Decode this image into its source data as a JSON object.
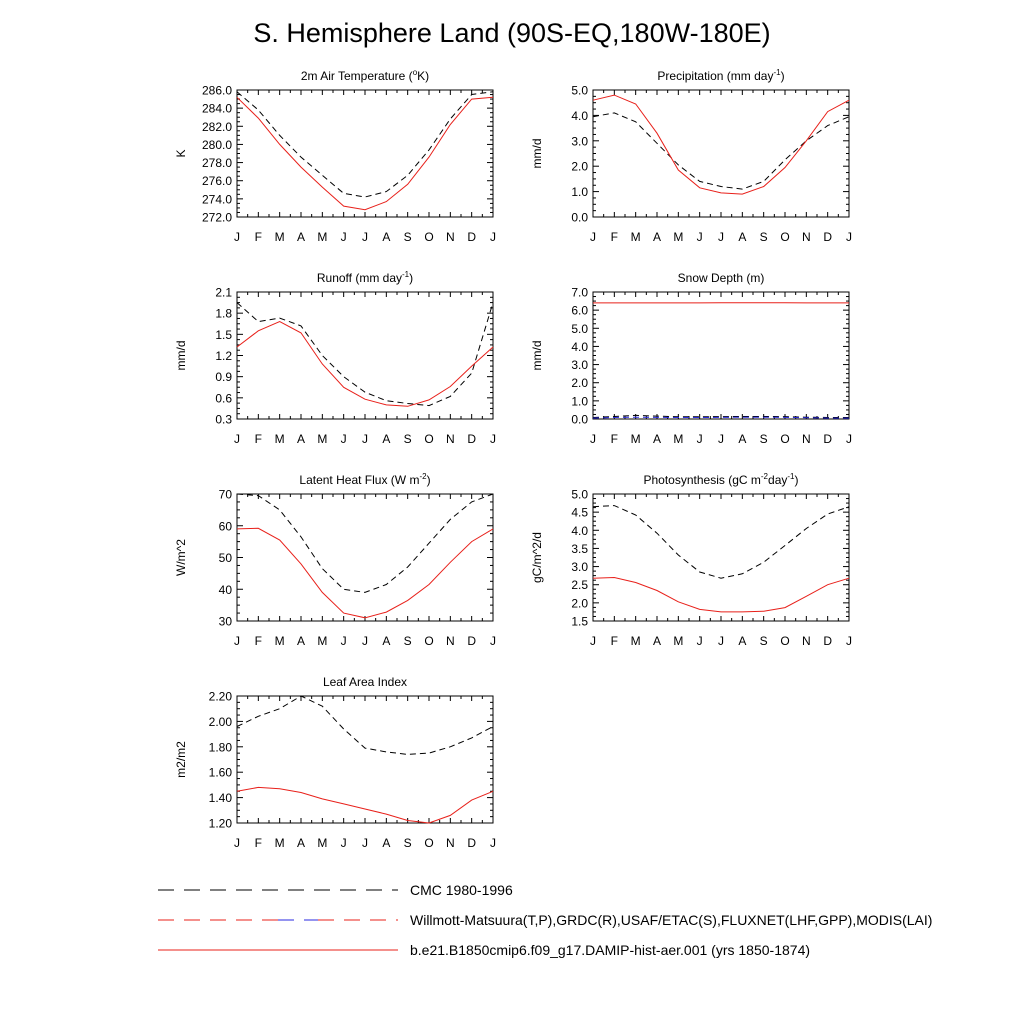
{
  "page": {
    "title": "S. Hemisphere Land (90S-EQ,180W-180E)"
  },
  "months": [
    "J",
    "F",
    "M",
    "A",
    "M",
    "J",
    "J",
    "A",
    "S",
    "O",
    "N",
    "D",
    "J"
  ],
  "legend": [
    {
      "label": "CMC 1980-1996",
      "style": "dash-black"
    },
    {
      "label": "Willmott-Matsuura(T,P),GRDC(R),USAF/ETAC(S),FLUXNET(LHF,GPP),MODIS(LAI)",
      "style": "dash-red-blue"
    },
    {
      "label": "b.e21.B1850cmip6.f09_g17.DAMIP-hist-aer.001 (yrs 1850-1874)",
      "style": "solid-red"
    }
  ],
  "chart_data": [
    {
      "type": "line",
      "title": "2m Air Temperature (°K)",
      "title_parts": [
        "2m Air Temperature (",
        "o",
        "K)"
      ],
      "ylabel": "K",
      "ylim": [
        272,
        286
      ],
      "yticks": [
        "286.0",
        "284.0",
        "282.0",
        "280.0",
        "278.0",
        "276.0",
        "274.0",
        "272.0"
      ],
      "ytick_values": [
        286,
        284,
        282,
        280,
        278,
        276,
        274,
        272
      ],
      "x": [
        "J",
        "F",
        "M",
        "A",
        "M",
        "J",
        "J",
        "A",
        "S",
        "O",
        "N",
        "D",
        "J"
      ],
      "series": [
        {
          "style": "dash-black",
          "values": [
            285.8,
            283.8,
            281.0,
            278.6,
            276.6,
            274.6,
            274.2,
            274.8,
            276.6,
            279.4,
            282.8,
            285.5,
            285.8
          ]
        },
        {
          "style": "solid-red",
          "values": [
            285.2,
            282.9,
            280.0,
            277.5,
            275.3,
            273.2,
            272.8,
            273.7,
            275.6,
            278.6,
            282.2,
            285.0,
            285.2
          ]
        }
      ]
    },
    {
      "type": "line",
      "title": "Precipitation (mm day-1)",
      "title_parts": [
        "Precipitation (mm day",
        "-1",
        ")"
      ],
      "ylabel": "mm/d",
      "ylim": [
        0,
        5
      ],
      "yticks": [
        "5.0",
        "4.0",
        "3.0",
        "2.0",
        "1.0",
        "0.0"
      ],
      "ytick_values": [
        5,
        4,
        3,
        2,
        1,
        0
      ],
      "x": [
        "J",
        "F",
        "M",
        "A",
        "M",
        "J",
        "J",
        "A",
        "S",
        "O",
        "N",
        "D",
        "J"
      ],
      "series": [
        {
          "style": "dash-black",
          "values": [
            3.95,
            4.1,
            3.75,
            2.9,
            2.05,
            1.4,
            1.2,
            1.1,
            1.4,
            2.25,
            3.0,
            3.6,
            3.95
          ]
        },
        {
          "style": "solid-red",
          "values": [
            4.6,
            4.8,
            4.45,
            3.3,
            1.85,
            1.15,
            0.95,
            0.9,
            1.2,
            1.95,
            3.0,
            4.15,
            4.6
          ]
        }
      ]
    },
    {
      "type": "line",
      "title": "Runoff (mm day-1)",
      "title_parts": [
        "Runoff (mm day",
        "-1",
        ")"
      ],
      "ylabel": "mm/d",
      "ylim": [
        0.3,
        2.1
      ],
      "yticks": [
        "2.1",
        "1.8",
        "1.5",
        "1.2",
        "0.9",
        "0.6",
        "0.3"
      ],
      "ytick_values": [
        2.1,
        1.8,
        1.5,
        1.2,
        0.9,
        0.6,
        0.3
      ],
      "x": [
        "J",
        "F",
        "M",
        "A",
        "M",
        "J",
        "J",
        "A",
        "S",
        "O",
        "N",
        "D",
        "J"
      ],
      "series": [
        {
          "style": "dash-black",
          "values": [
            1.95,
            1.68,
            1.73,
            1.62,
            1.2,
            0.9,
            0.68,
            0.56,
            0.52,
            0.49,
            0.62,
            0.95,
            1.95
          ]
        },
        {
          "style": "solid-red",
          "values": [
            1.32,
            1.55,
            1.68,
            1.52,
            1.08,
            0.75,
            0.58,
            0.5,
            0.48,
            0.57,
            0.76,
            1.05,
            1.32
          ]
        }
      ]
    },
    {
      "type": "line",
      "title": "Snow Depth (m)",
      "title_parts": [
        "Snow Depth (m)"
      ],
      "ylabel": "mm/d",
      "ylim": [
        0,
        7
      ],
      "yticks": [
        "7.0",
        "6.0",
        "5.0",
        "4.0",
        "3.0",
        "2.0",
        "1.0",
        "0.0"
      ],
      "ytick_values": [
        7,
        6,
        5,
        4,
        3,
        2,
        1,
        0
      ],
      "x": [
        "J",
        "F",
        "M",
        "A",
        "M",
        "J",
        "J",
        "A",
        "S",
        "O",
        "N",
        "D",
        "J"
      ],
      "series": [
        {
          "style": "dash-black",
          "values": [
            0.08,
            0.14,
            0.2,
            0.16,
            0.12,
            0.12,
            0.13,
            0.14,
            0.14,
            0.13,
            0.1,
            0.08,
            0.08
          ]
        },
        {
          "style": "dash-blue",
          "values": [
            0.05,
            0.08,
            0.1,
            0.09,
            0.08,
            0.08,
            0.09,
            0.1,
            0.1,
            0.09,
            0.07,
            0.05,
            0.05
          ]
        },
        {
          "style": "solid-red",
          "values": [
            6.4,
            6.4,
            6.4,
            6.4,
            6.4,
            6.4,
            6.41,
            6.41,
            6.41,
            6.41,
            6.4,
            6.4,
            6.4
          ]
        }
      ]
    },
    {
      "type": "line",
      "title": "Latent Heat Flux (W m-2)",
      "title_parts": [
        "Latent Heat Flux (W m",
        "-2",
        ")"
      ],
      "ylabel": "W/m^2",
      "ylim": [
        30,
        70
      ],
      "yticks": [
        "70",
        "60",
        "50",
        "40",
        "30"
      ],
      "ytick_values": [
        70,
        60,
        50,
        40,
        30
      ],
      "x": [
        "J",
        "F",
        "M",
        "A",
        "M",
        "J",
        "J",
        "A",
        "S",
        "O",
        "N",
        "D",
        "J"
      ],
      "series": [
        {
          "style": "dash-black",
          "values": [
            70.0,
            69.5,
            65.0,
            56.5,
            46.5,
            40.0,
            39.0,
            41.5,
            47.0,
            54.5,
            62.0,
            67.5,
            70.0
          ]
        },
        {
          "style": "solid-red",
          "values": [
            59.0,
            59.2,
            55.5,
            48.0,
            39.0,
            32.5,
            31.0,
            32.8,
            36.5,
            41.5,
            48.5,
            55.0,
            59.0
          ]
        }
      ]
    },
    {
      "type": "line",
      "title": "Photosynthesis (gC m-2day-1)",
      "title_parts": [
        "Photosynthesis (gC m",
        "-2",
        "day",
        "-1",
        ")"
      ],
      "ylabel": "gC/m^2/d",
      "ylim": [
        1.5,
        5.0
      ],
      "yticks": [
        "5.0",
        "4.5",
        "4.0",
        "3.5",
        "3.0",
        "2.5",
        "2.0",
        "1.5"
      ],
      "ytick_values": [
        5.0,
        4.5,
        4.0,
        3.5,
        3.0,
        2.5,
        2.0,
        1.5
      ],
      "x": [
        "J",
        "F",
        "M",
        "A",
        "M",
        "J",
        "J",
        "A",
        "S",
        "O",
        "N",
        "D",
        "J"
      ],
      "series": [
        {
          "style": "dash-black",
          "values": [
            4.65,
            4.68,
            4.42,
            3.92,
            3.32,
            2.85,
            2.68,
            2.8,
            3.12,
            3.58,
            4.05,
            4.45,
            4.65
          ]
        },
        {
          "style": "solid-red",
          "values": [
            2.68,
            2.7,
            2.56,
            2.34,
            2.03,
            1.82,
            1.75,
            1.75,
            1.77,
            1.87,
            2.18,
            2.5,
            2.68
          ]
        }
      ]
    },
    {
      "type": "line",
      "title": "Leaf Area Index",
      "title_parts": [
        "Leaf Area Index"
      ],
      "ylabel": "m2/m2",
      "ylim": [
        1.2,
        2.2
      ],
      "yticks": [
        "2.20",
        "2.00",
        "1.80",
        "1.60",
        "1.40",
        "1.20"
      ],
      "ytick_values": [
        2.2,
        2.0,
        1.8,
        1.6,
        1.4,
        1.2
      ],
      "x": [
        "J",
        "F",
        "M",
        "A",
        "M",
        "J",
        "J",
        "A",
        "S",
        "O",
        "N",
        "D",
        "J"
      ],
      "series": [
        {
          "style": "dash-black",
          "values": [
            1.96,
            2.04,
            2.1,
            2.2,
            2.12,
            1.94,
            1.79,
            1.76,
            1.74,
            1.75,
            1.8,
            1.87,
            1.96
          ]
        },
        {
          "style": "solid-red",
          "values": [
            1.45,
            1.48,
            1.47,
            1.44,
            1.39,
            1.35,
            1.31,
            1.27,
            1.22,
            1.2,
            1.26,
            1.38,
            1.45
          ]
        }
      ]
    }
  ]
}
